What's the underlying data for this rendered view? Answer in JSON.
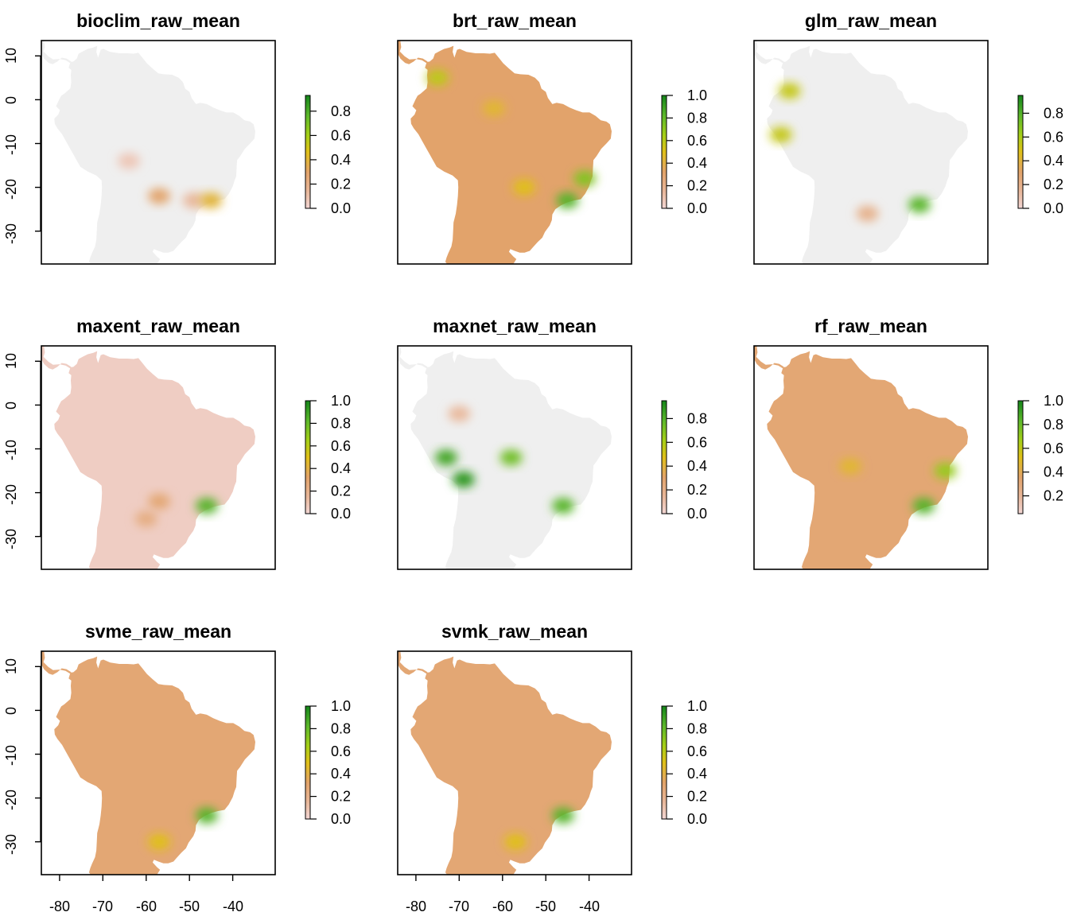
{
  "figure": {
    "panels": [
      {
        "title": "bioclim_raw_mean",
        "legend_ticks": [
          "0.0",
          "0.2",
          "0.4",
          "0.6",
          "0.8"
        ],
        "legend_values": [
          0,
          0.2,
          0.4,
          0.6,
          0.8
        ],
        "legend_max": 0.93,
        "base_level": 0.0,
        "hotspots": [
          {
            "lon": -49,
            "lat": -23,
            "level": 0.15
          },
          {
            "lon": -45,
            "lat": -23,
            "level": 0.4
          },
          {
            "lon": -57,
            "lat": -22,
            "level": 0.3
          },
          {
            "lon": -64,
            "lat": -14,
            "level": 0.08
          }
        ]
      },
      {
        "title": "brt_raw_mean",
        "legend_ticks": [
          "0.0",
          "0.2",
          "0.4",
          "0.6",
          "0.8",
          "1.0"
        ],
        "legend_values": [
          0,
          0.2,
          0.4,
          0.6,
          0.8,
          1.0
        ],
        "legend_max": 1.0,
        "base_level": 0.33,
        "hotspots": [
          {
            "lon": -45,
            "lat": -23,
            "level": 0.85
          },
          {
            "lon": -41,
            "lat": -18,
            "level": 0.75
          },
          {
            "lon": -55,
            "lat": -20,
            "level": 0.5
          },
          {
            "lon": -75,
            "lat": 5,
            "level": 0.6
          },
          {
            "lon": -62,
            "lat": -2,
            "level": 0.45
          }
        ]
      },
      {
        "title": "glm_raw_mean",
        "legend_ticks": [
          "0.0",
          "0.2",
          "0.4",
          "0.6",
          "0.8"
        ],
        "legend_values": [
          0,
          0.2,
          0.4,
          0.6,
          0.8
        ],
        "legend_max": 0.95,
        "base_level": 0.0,
        "hotspots": [
          {
            "lon": -46,
            "lat": -24,
            "level": 0.8
          },
          {
            "lon": -78,
            "lat": -8,
            "level": 0.55
          },
          {
            "lon": -76,
            "lat": 2,
            "level": 0.55
          },
          {
            "lon": -58,
            "lat": -26,
            "level": 0.2
          }
        ]
      },
      {
        "title": "maxent_raw_mean",
        "legend_ticks": [
          "0.0",
          "0.2",
          "0.4",
          "0.6",
          "0.8",
          "1.0"
        ],
        "legend_values": [
          0,
          0.2,
          0.4,
          0.6,
          0.8,
          1.0
        ],
        "legend_max": 1.0,
        "base_level": 0.05,
        "hotspots": [
          {
            "lon": -46,
            "lat": -23,
            "level": 0.85
          },
          {
            "lon": -57,
            "lat": -22,
            "level": 0.3
          },
          {
            "lon": -60,
            "lat": -26,
            "level": 0.25
          }
        ]
      },
      {
        "title": "maxnet_raw_mean",
        "legend_ticks": [
          "0.0",
          "0.2",
          "0.4",
          "0.6",
          "0.8"
        ],
        "legend_values": [
          0,
          0.2,
          0.4,
          0.6,
          0.8
        ],
        "legend_max": 0.95,
        "base_level": 0.0,
        "hotspots": [
          {
            "lon": -46,
            "lat": -23,
            "level": 0.8
          },
          {
            "lon": -58,
            "lat": -12,
            "level": 0.75
          },
          {
            "lon": -73,
            "lat": -12,
            "level": 0.85
          },
          {
            "lon": -69,
            "lat": -17,
            "level": 0.9
          },
          {
            "lon": -70,
            "lat": -2,
            "level": 0.15
          }
        ]
      },
      {
        "title": "rf_raw_mean",
        "legend_ticks": [
          "0.2",
          "0.4",
          "0.6",
          "0.8",
          "1.0"
        ],
        "legend_values": [
          0.2,
          0.4,
          0.6,
          0.8,
          1.0
        ],
        "legend_max": 1.0,
        "base_level": 0.3,
        "hotspots": [
          {
            "lon": -45,
            "lat": -23,
            "level": 0.85
          },
          {
            "lon": -40,
            "lat": -15,
            "level": 0.7
          },
          {
            "lon": -62,
            "lat": -14,
            "level": 0.45
          }
        ]
      },
      {
        "title": "svme_raw_mean",
        "legend_ticks": [
          "0.0",
          "0.2",
          "0.4",
          "0.6",
          "0.8",
          "1.0"
        ],
        "legend_values": [
          0,
          0.2,
          0.4,
          0.6,
          0.8,
          1.0
        ],
        "legend_max": 1.0,
        "base_level": 0.3,
        "hotspots": [
          {
            "lon": -46,
            "lat": -24,
            "level": 0.85
          },
          {
            "lon": -57,
            "lat": -30,
            "level": 0.5
          }
        ]
      },
      {
        "title": "svmk_raw_mean",
        "legend_ticks": [
          "0.0",
          "0.2",
          "0.4",
          "0.6",
          "0.8",
          "1.0"
        ],
        "legend_values": [
          0,
          0.2,
          0.4,
          0.6,
          0.8,
          1.0
        ],
        "legend_max": 1.0,
        "base_level": 0.3,
        "hotspots": [
          {
            "lon": -46,
            "lat": -24,
            "level": 0.85
          },
          {
            "lon": -57,
            "lat": -30,
            "level": 0.5
          }
        ]
      }
    ],
    "x_ticks": [
      "-80",
      "-70",
      "-60",
      "-50",
      "-40"
    ],
    "x_values": [
      -80,
      -70,
      -60,
      -50,
      -40
    ],
    "y_ticks": [
      "10",
      "0",
      "-10",
      "-20",
      "-30"
    ],
    "y_values": [
      10,
      0,
      -10,
      -20,
      -30
    ],
    "xlim": [
      -84.2,
      -30.2
    ],
    "ylim": [
      -37.5,
      13.5
    ],
    "colors": {
      "background_na": "#efefef",
      "ramp": [
        "#f2d6d4",
        "#e8b79a",
        "#e2a36a",
        "#e0c019",
        "#a4cf18",
        "#5db82b",
        "#14851a"
      ]
    }
  },
  "chart_data": [
    {
      "type": "heatmap",
      "title": "bioclim_raw_mean",
      "xlim": [
        -84.2,
        -30.2
      ],
      "ylim": [
        -37.5,
        13.5
      ],
      "legend_range": [
        0,
        0.93
      ]
    },
    {
      "type": "heatmap",
      "title": "brt_raw_mean",
      "xlim": [
        -84.2,
        -30.2
      ],
      "ylim": [
        -37.5,
        13.5
      ],
      "legend_range": [
        0,
        1.0
      ]
    },
    {
      "type": "heatmap",
      "title": "glm_raw_mean",
      "xlim": [
        -84.2,
        -30.2
      ],
      "ylim": [
        -37.5,
        13.5
      ],
      "legend_range": [
        0,
        0.95
      ]
    },
    {
      "type": "heatmap",
      "title": "maxent_raw_mean",
      "xlim": [
        -84.2,
        -30.2
      ],
      "ylim": [
        -37.5,
        13.5
      ],
      "legend_range": [
        0,
        1.0
      ]
    },
    {
      "type": "heatmap",
      "title": "maxnet_raw_mean",
      "xlim": [
        -84.2,
        -30.2
      ],
      "ylim": [
        -37.5,
        13.5
      ],
      "legend_range": [
        0,
        0.95
      ]
    },
    {
      "type": "heatmap",
      "title": "rf_raw_mean",
      "xlim": [
        -84.2,
        -30.2
      ],
      "ylim": [
        -37.5,
        13.5
      ],
      "legend_range": [
        0.05,
        1.0
      ]
    },
    {
      "type": "heatmap",
      "title": "svme_raw_mean",
      "xlim": [
        -84.2,
        -30.2
      ],
      "ylim": [
        -37.5,
        13.5
      ],
      "legend_range": [
        0,
        1.0
      ]
    },
    {
      "type": "heatmap",
      "title": "svmk_raw_mean",
      "xlim": [
        -84.2,
        -30.2
      ],
      "ylim": [
        -37.5,
        13.5
      ],
      "legend_range": [
        0,
        1.0
      ]
    }
  ]
}
